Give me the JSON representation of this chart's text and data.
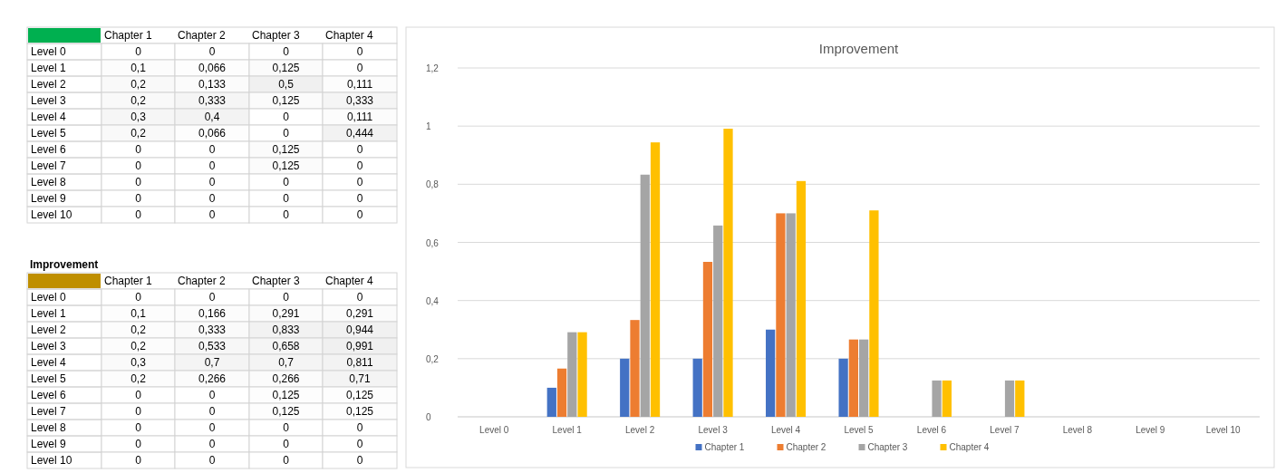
{
  "chart_data": [
    {
      "type": "heatmap",
      "categories": [
        "Chapter 1",
        "Chapter 2",
        "Chapter 3",
        "Chapter 4"
      ],
      "y_categories": [
        "Level 0",
        "Level 1",
        "Level 2",
        "Level 3",
        "Level 4",
        "Level 5",
        "Level 6",
        "Level 7",
        "Level 8",
        "Level 9",
        "Level 10"
      ],
      "cells": [
        [
          0,
          0,
          0,
          0
        ],
        [
          0.1,
          0.066,
          0.125,
          0
        ],
        [
          0.2,
          0.133,
          0.5,
          0.111
        ],
        [
          0.2,
          0.333,
          0.125,
          0.333
        ],
        [
          0.3,
          0.4,
          0,
          0.111
        ],
        [
          0.2,
          0.066,
          0,
          0.444
        ],
        [
          0,
          0,
          0.125,
          0
        ],
        [
          0,
          0,
          0.125,
          0
        ],
        [
          0,
          0,
          0,
          0
        ],
        [
          0,
          0,
          0,
          0
        ],
        [
          0,
          0,
          0,
          0
        ]
      ],
      "cell_labels": [
        [
          "0",
          "0",
          "0",
          "0"
        ],
        [
          "0,1",
          "0,066",
          "0,125",
          "0"
        ],
        [
          "0,2",
          "0,133",
          "0,5",
          "0,111"
        ],
        [
          "0,2",
          "0,333",
          "0,125",
          "0,333"
        ],
        [
          "0,3",
          "0,4",
          "0",
          "0,111"
        ],
        [
          "0,2",
          "0,066",
          "0",
          "0,444"
        ],
        [
          "0",
          "0",
          "0,125",
          "0"
        ],
        [
          "0",
          "0",
          "0,125",
          "0"
        ],
        [
          "0",
          "0",
          "0",
          "0"
        ],
        [
          "0",
          "0",
          "0",
          "0"
        ],
        [
          "0",
          "0",
          "0",
          "0"
        ]
      ]
    },
    {
      "type": "heatmap",
      "title": "Improvement",
      "categories": [
        "Chapter 1",
        "Chapter 2",
        "Chapter 3",
        "Chapter 4"
      ],
      "y_categories": [
        "Level 0",
        "Level 1",
        "Level 2",
        "Level 3",
        "Level 4",
        "Level 5",
        "Level 6",
        "Level 7",
        "Level 8",
        "Level 9",
        "Level 10"
      ],
      "cells": [
        [
          0,
          0,
          0,
          0
        ],
        [
          0.1,
          0.166,
          0.291,
          0.291
        ],
        [
          0.2,
          0.333,
          0.833,
          0.944
        ],
        [
          0.2,
          0.533,
          0.658,
          0.991
        ],
        [
          0.3,
          0.7,
          0.7,
          0.811
        ],
        [
          0.2,
          0.266,
          0.266,
          0.71
        ],
        [
          0,
          0,
          0.125,
          0.125
        ],
        [
          0,
          0,
          0.125,
          0.125
        ],
        [
          0,
          0,
          0,
          0
        ],
        [
          0,
          0,
          0,
          0
        ],
        [
          0,
          0,
          0,
          0
        ]
      ],
      "cell_labels": [
        [
          "0",
          "0",
          "0",
          "0"
        ],
        [
          "0,1",
          "0,166",
          "0,291",
          "0,291"
        ],
        [
          "0,2",
          "0,333",
          "0,833",
          "0,944"
        ],
        [
          "0,2",
          "0,533",
          "0,658",
          "0,991"
        ],
        [
          "0,3",
          "0,7",
          "0,7",
          "0,811"
        ],
        [
          "0,2",
          "0,266",
          "0,266",
          "0,71"
        ],
        [
          "0",
          "0",
          "0,125",
          "0,125"
        ],
        [
          "0",
          "0",
          "0,125",
          "0,125"
        ],
        [
          "0",
          "0",
          "0",
          "0"
        ],
        [
          "0",
          "0",
          "0",
          "0"
        ],
        [
          "0",
          "0",
          "0",
          "0"
        ]
      ]
    },
    {
      "type": "bar",
      "title": "Improvement",
      "categories": [
        "Level 0",
        "Level 1",
        "Level 2",
        "Level 3",
        "Level 4",
        "Level 5",
        "Level 6",
        "Level 7",
        "Level 8",
        "Level 9",
        "Level 10"
      ],
      "ylim": [
        0,
        1.2
      ],
      "yticks": [
        0,
        {
          "value": 0.2,
          "label": "0,2"
        },
        {
          "value": 0.4,
          "label": "0,4"
        },
        {
          "value": 0.6,
          "label": "0,6"
        },
        {
          "value": 0.8,
          "label": "0,8"
        },
        1,
        {
          "value": 1.2,
          "label": "1,2"
        }
      ],
      "grid": "y",
      "legend": "bottom",
      "series": [
        {
          "name": "Chapter 1",
          "color": "#4472c4",
          "values": [
            0,
            0.1,
            0.2,
            0.2,
            0.3,
            0.2,
            0,
            0,
            0,
            0,
            0
          ]
        },
        {
          "name": "Chapter 2",
          "color": "#ed7d31",
          "values": [
            0,
            0.166,
            0.333,
            0.533,
            0.7,
            0.266,
            0,
            0,
            0,
            0,
            0
          ]
        },
        {
          "name": "Chapter 3",
          "color": "#a5a5a5",
          "values": [
            0,
            0.291,
            0.833,
            0.658,
            0.7,
            0.266,
            0.125,
            0.125,
            0,
            0,
            0
          ]
        },
        {
          "name": "Chapter 4",
          "color": "#ffc000",
          "values": [
            0,
            0.291,
            0.944,
            0.991,
            0.811,
            0.71,
            0.125,
            0.125,
            0,
            0,
            0
          ]
        }
      ]
    }
  ]
}
